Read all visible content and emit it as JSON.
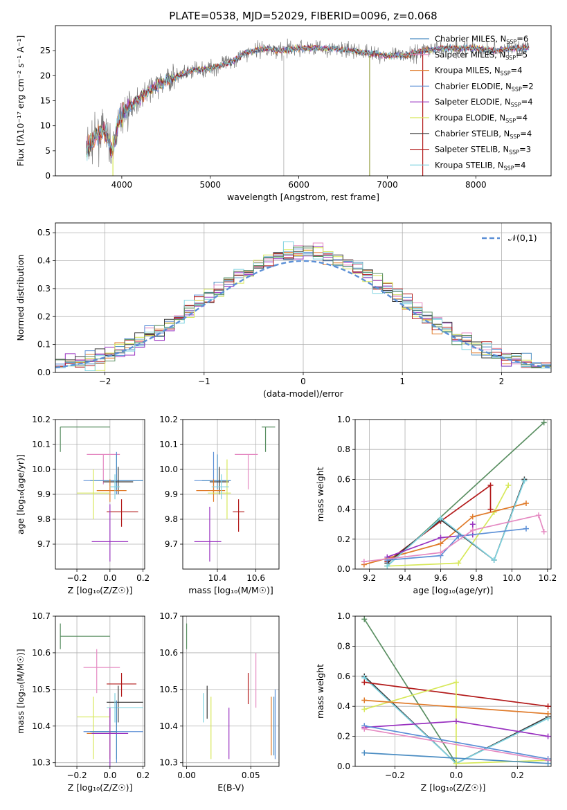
{
  "figure": {
    "title": "PLATE=0538, MJD=52029, FIBERID=0096, z=0.068"
  },
  "colors": {
    "chabrier_miles": "#4a8cc2",
    "salpeter_miles": "#e58ac2",
    "kroupa_miles": "#e07b2a",
    "chabrier_elodie": "#5b8fd6",
    "salpeter_elodie": "#9932c0",
    "kroupa_elodie": "#d7e85a",
    "chabrier_stelib": "#3a3a3a",
    "salpeter_stelib": "#b31b1b",
    "kroupa_stelib": "#7fd3e0",
    "normal_curve": "#5b8fd6",
    "green_line": "#5a8f62"
  },
  "chart_data": [
    {
      "id": "spectrum",
      "type": "line",
      "title": "PLATE=0538, MJD=52029, FIBERID=0096, z=0.068",
      "xlabel": "wavelength [Angstrom, rest frame]",
      "ylabel": "Flux [fλ10⁻¹⁷ erg cm⁻² s⁻¹ A⁻¹]",
      "xlim": [
        3250,
        8850
      ],
      "ylim": [
        0,
        30
      ],
      "xticks": [
        4000,
        5000,
        6000,
        7000,
        8000
      ],
      "yticks": [
        0,
        5,
        10,
        15,
        20,
        25
      ],
      "grid": false,
      "legend_position": "top-right",
      "legend": [
        {
          "label": "Chabrier MILES, N",
          "sub": "SSP",
          "suffix": "=6"
        },
        {
          "label": "Salpeter MILES, N",
          "sub": "SSP",
          "suffix": "=5"
        },
        {
          "label": "Kroupa MILES, N",
          "sub": "SSP",
          "suffix": "=4"
        },
        {
          "label": "Chabrier ELODIE, N",
          "sub": "SSP",
          "suffix": "=2"
        },
        {
          "label": "Salpeter ELODIE, N",
          "sub": "SSP",
          "suffix": "=4"
        },
        {
          "label": "Kroupa ELODIE, N",
          "sub": "SSP",
          "suffix": "=4"
        },
        {
          "label": "Chabrier STELIB, N",
          "sub": "SSP",
          "suffix": "=4"
        },
        {
          "label": "Salpeter STELIB, N",
          "sub": "SSP",
          "suffix": "=3"
        },
        {
          "label": "Kroupa STELIB, N",
          "sub": "SSP",
          "suffix": "=4"
        }
      ],
      "data_envelope": [
        [
          3600,
          5
        ],
        [
          3700,
          8
        ],
        [
          3800,
          9
        ],
        [
          3900,
          5
        ],
        [
          3950,
          10
        ],
        [
          4000,
          12
        ],
        [
          4100,
          14
        ],
        [
          4300,
          17
        ],
        [
          4500,
          19
        ],
        [
          4800,
          21
        ],
        [
          5000,
          21.5
        ],
        [
          5200,
          22.5
        ],
        [
          5400,
          24.5
        ],
        [
          5600,
          25.5
        ],
        [
          5800,
          25
        ],
        [
          6000,
          25.5
        ],
        [
          6300,
          25.5
        ],
        [
          6600,
          25
        ],
        [
          6800,
          24.5
        ],
        [
          7000,
          24
        ],
        [
          7200,
          24
        ],
        [
          7400,
          25
        ],
        [
          7600,
          25.5
        ],
        [
          7800,
          25.5
        ],
        [
          8000,
          25.5
        ],
        [
          8200,
          25
        ],
        [
          8400,
          25.5
        ],
        [
          8600,
          25.5
        ]
      ],
      "spikes": [
        {
          "x": 3900,
          "from": 0,
          "to": 8
        },
        {
          "x": 5830,
          "from": 0,
          "to": 24
        },
        {
          "x": 6800,
          "from": 0,
          "to": 24
        },
        {
          "x": 7400,
          "from": 0,
          "to": 25
        }
      ]
    },
    {
      "id": "residuals",
      "type": "histogram",
      "xlabel": "(data-model)/error",
      "ylabel": "Normed distribution",
      "xlim": [
        -2.5,
        2.5
      ],
      "ylim": [
        0,
        0.535
      ],
      "xticks": [
        -2,
        -1,
        0,
        1,
        2
      ],
      "yticks": [
        0.0,
        0.1,
        0.2,
        0.3,
        0.4,
        0.5
      ],
      "grid": true,
      "legend_position": "top-right",
      "legend_label": "𝒩(0,1)",
      "bin_width": 0.1
    },
    {
      "id": "age_vs_Z",
      "type": "errorbar",
      "xlabel": "Z [log₁₀(Z/Z☉)]",
      "ylabel": "age  [log₁₀(age/yr)]",
      "xlim": [
        -0.33,
        0.21
      ],
      "ylim": [
        9.6,
        10.2
      ],
      "xticks": [
        -0.2,
        0.0,
        0.2
      ],
      "yticks": [
        9.7,
        9.8,
        9.9,
        10.0,
        10.1,
        10.2
      ],
      "grid": true,
      "points": [
        {
          "c": "green_line",
          "x": -0.3,
          "xl": -0.3,
          "xh": 0.0,
          "y": 10.17,
          "yl": 10.07,
          "yh": 10.17
        },
        {
          "c": "salpeter_miles",
          "x": -0.04,
          "xl": -0.14,
          "xh": 0.06,
          "y": 10.06,
          "yl": 9.94,
          "yh": 10.06
        },
        {
          "c": "chabrier_elodie",
          "x": 0.04,
          "xl": -0.16,
          "xh": 0.2,
          "y": 9.955,
          "yl": 9.9,
          "yh": 10.07
        },
        {
          "c": "chabrier_miles",
          "x": 0.04,
          "xl": -0.12,
          "xh": 0.2,
          "y": 9.955,
          "yl": 9.92,
          "yh": 10.06
        },
        {
          "c": "chabrier_stelib",
          "x": 0.05,
          "xl": -0.04,
          "xh": 0.14,
          "y": 9.95,
          "yl": 9.9,
          "yh": 10.01
        },
        {
          "c": "kroupa_miles",
          "x": 0.0,
          "xl": -0.08,
          "xh": 0.1,
          "y": 9.915,
          "yl": 9.87,
          "yh": 9.96
        },
        {
          "c": "kroupa_elodie",
          "x": -0.1,
          "xl": -0.2,
          "xh": 0.0,
          "y": 9.905,
          "yl": 9.8,
          "yh": 10.0
        },
        {
          "c": "salpeter_stelib",
          "x": 0.07,
          "xl": -0.02,
          "xh": 0.17,
          "y": 9.83,
          "yl": 9.77,
          "yh": 9.88
        },
        {
          "c": "salpeter_elodie",
          "x": 0.0,
          "xl": -0.11,
          "xh": 0.11,
          "y": 9.71,
          "yl": 9.63,
          "yh": 9.86
        },
        {
          "c": "kroupa_stelib",
          "x": 0.03,
          "xl": 0.0,
          "xh": 0.06,
          "y": 9.93,
          "yl": 9.88,
          "yh": 9.98
        }
      ]
    },
    {
      "id": "age_vs_mass",
      "type": "errorbar",
      "xlabel": "mass [log₁₀(M/M☉)]",
      "ylabel": "",
      "xlim": [
        10.22,
        10.72
      ],
      "ylim": [
        9.6,
        10.2
      ],
      "xticks": [
        10.4,
        10.6
      ],
      "yticks": [
        9.7,
        9.8,
        9.9,
        10.0,
        10.1,
        10.2
      ],
      "grid": true,
      "points": [
        {
          "c": "green_line",
          "x": 10.65,
          "xl": 10.63,
          "xh": 10.7,
          "y": 10.17,
          "yl": 10.07,
          "yh": 10.17
        },
        {
          "c": "salpeter_miles",
          "x": 10.56,
          "xl": 10.49,
          "xh": 10.61,
          "y": 10.06,
          "yl": 9.92,
          "yh": 10.06
        },
        {
          "c": "chabrier_elodie",
          "x": 10.38,
          "xl": 10.28,
          "xh": 10.47,
          "y": 9.955,
          "yl": 9.9,
          "yh": 10.07
        },
        {
          "c": "chabrier_miles",
          "x": 10.4,
          "xl": 10.32,
          "xh": 10.47,
          "y": 9.955,
          "yl": 9.92,
          "yh": 10.06
        },
        {
          "c": "chabrier_stelib",
          "x": 10.41,
          "xl": 10.36,
          "xh": 10.46,
          "y": 9.95,
          "yl": 9.9,
          "yh": 10.01
        },
        {
          "c": "kroupa_miles",
          "x": 10.38,
          "xl": 10.29,
          "xh": 10.44,
          "y": 9.915,
          "yl": 9.87,
          "yh": 9.96
        },
        {
          "c": "kroupa_elodie",
          "x": 10.45,
          "xl": 10.35,
          "xh": 10.47,
          "y": 9.905,
          "yl": 9.8,
          "yh": 10.04
        },
        {
          "c": "salpeter_stelib",
          "x": 10.51,
          "xl": 10.48,
          "xh": 10.54,
          "y": 9.83,
          "yl": 9.75,
          "yh": 9.88
        },
        {
          "c": "salpeter_elodie",
          "x": 10.36,
          "xl": 10.28,
          "xh": 10.42,
          "y": 9.71,
          "yl": 9.63,
          "yh": 9.85
        },
        {
          "c": "kroupa_stelib",
          "x": 10.42,
          "xl": 10.37,
          "xh": 10.46,
          "y": 9.93,
          "yl": 9.88,
          "yh": 9.98
        }
      ]
    },
    {
      "id": "massweight_vs_age",
      "type": "line",
      "xlabel": "age  [log₁₀(age/yr)]",
      "ylabel": "mass weight",
      "xlim": [
        9.12,
        10.22
      ],
      "ylim": [
        0,
        1.0
      ],
      "xticks": [
        9.2,
        9.4,
        9.6,
        9.8,
        10.0,
        10.2
      ],
      "yticks": [
        0.0,
        0.2,
        0.4,
        0.6,
        0.8,
        1.0
      ],
      "grid": true,
      "series": [
        {
          "c": "green_line",
          "x": [
            9.3,
            10.18
          ],
          "y": [
            0.02,
            0.98
          ]
        },
        {
          "c": "salpeter_stelib",
          "x": [
            9.3,
            9.6,
            9.88,
            9.88
          ],
          "y": [
            0.05,
            0.32,
            0.56,
            0.4
          ]
        },
        {
          "c": "kroupa_elodie",
          "x": [
            9.3,
            9.7,
            9.9,
            9.98
          ],
          "y": [
            0.02,
            0.04,
            0.38,
            0.56
          ]
        },
        {
          "c": "kroupa_miles",
          "x": [
            9.17,
            9.6,
            9.78,
            10.08
          ],
          "y": [
            0.03,
            0.17,
            0.35,
            0.44
          ]
        },
        {
          "c": "chabrier_stelib",
          "x": [
            9.3,
            9.6,
            9.9,
            10.07
          ],
          "y": [
            0.04,
            0.33,
            0.06,
            0.6
          ]
        },
        {
          "c": "kroupa_stelib",
          "x": [
            9.3,
            9.6,
            9.9,
            10.07
          ],
          "y": [
            0.02,
            0.34,
            0.06,
            0.59
          ]
        },
        {
          "c": "salpeter_elodie",
          "x": [
            9.3,
            9.6,
            9.78,
            9.78
          ],
          "y": [
            0.08,
            0.21,
            0.23,
            0.3
          ]
        },
        {
          "c": "chabrier_elodie",
          "x": [
            9.3,
            9.6,
            9.7,
            10.08
          ],
          "y": [
            0.06,
            0.09,
            0.22,
            0.27
          ]
        },
        {
          "c": "salpeter_miles",
          "x": [
            9.17,
            9.6,
            9.78,
            10.15,
            10.18
          ],
          "y": [
            0.05,
            0.11,
            0.26,
            0.36,
            0.25
          ]
        }
      ]
    },
    {
      "id": "mass_vs_Z",
      "type": "errorbar",
      "xlabel": "Z [log₁₀(Z/Z☉)]",
      "ylabel": "mass [log₁₀(M/M☉)]",
      "xlim": [
        -0.33,
        0.21
      ],
      "ylim": [
        10.29,
        10.7
      ],
      "xticks": [
        -0.2,
        0.0,
        0.2
      ],
      "yticks": [
        10.3,
        10.4,
        10.5,
        10.6,
        10.7
      ],
      "grid": true,
      "points": [
        {
          "c": "green_line",
          "x": -0.3,
          "xl": -0.3,
          "xh": 0.0,
          "y": 10.645,
          "yl": 10.61,
          "yh": 10.68
        },
        {
          "c": "salpeter_miles",
          "x": -0.08,
          "xl": -0.16,
          "xh": 0.06,
          "y": 10.56,
          "yl": 10.49,
          "yh": 10.61
        },
        {
          "c": "salpeter_stelib",
          "x": 0.07,
          "xl": -0.02,
          "xh": 0.16,
          "y": 10.515,
          "yl": 10.48,
          "yh": 10.545
        },
        {
          "c": "chabrier_stelib",
          "x": 0.05,
          "xl": -0.02,
          "xh": 0.2,
          "y": 10.465,
          "yl": 10.41,
          "yh": 10.51
        },
        {
          "c": "kroupa_stelib",
          "x": 0.03,
          "xl": -0.02,
          "xh": 0.2,
          "y": 10.45,
          "yl": 10.41,
          "yh": 10.49
        },
        {
          "c": "kroupa_elodie",
          "x": -0.1,
          "xl": -0.2,
          "xh": 0.0,
          "y": 10.425,
          "yl": 10.31,
          "yh": 10.48
        },
        {
          "c": "chabrier_elodie",
          "x": 0.04,
          "xl": -0.16,
          "xh": 0.2,
          "y": 10.385,
          "yl": 10.3,
          "yh": 10.46
        },
        {
          "c": "chabrier_miles",
          "x": 0.04,
          "xl": -0.12,
          "xh": 0.04,
          "y": 10.385,
          "yl": 10.31,
          "yh": 10.47
        },
        {
          "c": "kroupa_miles",
          "x": 0.0,
          "xl": -0.14,
          "xh": 0.04,
          "y": 10.38,
          "yl": 10.31,
          "yh": 10.45
        },
        {
          "c": "salpeter_elodie",
          "x": 0.0,
          "xl": -0.11,
          "xh": 0.11,
          "y": 10.38,
          "yl": 10.29,
          "yh": 10.45
        }
      ]
    },
    {
      "id": "mass_vs_EBV",
      "type": "errorbar",
      "xlabel": "E(B-V)",
      "ylabel": "",
      "xlim": [
        -0.003,
        0.072
      ],
      "ylim": [
        10.29,
        10.7
      ],
      "xticks": [
        0.0,
        0.05
      ],
      "xticklabels": [
        "0.00",
        "0.05"
      ],
      "yticks": [
        10.3,
        10.4,
        10.5,
        10.6,
        10.7
      ],
      "grid": true,
      "points": [
        {
          "c": "green_line",
          "x": 0.0,
          "y": 10.645,
          "yl": 10.61,
          "yh": 10.68
        },
        {
          "c": "salpeter_miles",
          "x": 0.054,
          "y": 10.53,
          "yl": 10.45,
          "yh": 10.6
        },
        {
          "c": "salpeter_stelib",
          "x": 0.048,
          "y": 10.5,
          "yl": 10.46,
          "yh": 10.545
        },
        {
          "c": "chabrier_stelib",
          "x": 0.016,
          "y": 10.47,
          "yl": 10.42,
          "yh": 10.51
        },
        {
          "c": "kroupa_stelib",
          "x": 0.013,
          "y": 10.45,
          "yl": 10.41,
          "yh": 10.49
        },
        {
          "c": "kroupa_elodie",
          "x": 0.019,
          "y": 10.42,
          "yl": 10.31,
          "yh": 10.48
        },
        {
          "c": "chabrier_elodie",
          "x": 0.069,
          "y": 10.41,
          "yl": 10.31,
          "yh": 10.5
        },
        {
          "c": "chabrier_miles",
          "x": 0.068,
          "y": 10.4,
          "yl": 10.32,
          "yh": 10.48
        },
        {
          "c": "kroupa_miles",
          "x": 0.066,
          "y": 10.38,
          "yl": 10.32,
          "yh": 10.48
        },
        {
          "c": "salpeter_elodie",
          "x": 0.033,
          "y": 10.38,
          "yl": 10.31,
          "yh": 10.45
        }
      ]
    },
    {
      "id": "massweight_vs_Z",
      "type": "line",
      "xlabel": "Z [log₁₀(Z/Z☉)]",
      "ylabel": "mass weight",
      "xlim": [
        -0.33,
        0.31
      ],
      "ylim": [
        0,
        1.0
      ],
      "xticks": [
        -0.2,
        0.0,
        0.2
      ],
      "yticks": [
        0.0,
        0.2,
        0.4,
        0.6,
        0.8,
        1.0
      ],
      "grid": true,
      "series": [
        {
          "c": "green_line",
          "x": [
            -0.3,
            0.0
          ],
          "y": [
            0.98,
            0.02
          ]
        },
        {
          "c": "chabrier_stelib",
          "x": [
            -0.3,
            0.0,
            0.3
          ],
          "y": [
            0.6,
            0.02,
            0.33
          ]
        },
        {
          "c": "kroupa_stelib",
          "x": [
            -0.3,
            0.0,
            0.3
          ],
          "y": [
            0.59,
            0.02,
            0.32
          ]
        },
        {
          "c": "salpeter_stelib",
          "x": [
            -0.3,
            0.3
          ],
          "y": [
            0.56,
            0.4
          ]
        },
        {
          "c": "kroupa_elodie",
          "x": [
            -0.3,
            0.0,
            0.0,
            0.3
          ],
          "y": [
            0.38,
            0.56,
            0.02,
            0.04
          ]
        },
        {
          "c": "kroupa_miles",
          "x": [
            -0.3,
            0.3
          ],
          "y": [
            0.44,
            0.35
          ]
        },
        {
          "c": "salpeter_elodie",
          "x": [
            -0.3,
            0.0,
            0.3
          ],
          "y": [
            0.26,
            0.3,
            0.2
          ]
        },
        {
          "c": "chabrier_elodie",
          "x": [
            -0.3,
            0.3
          ],
          "y": [
            0.27,
            0.05
          ]
        },
        {
          "c": "salpeter_miles",
          "x": [
            -0.3,
            0.3
          ],
          "y": [
            0.25,
            0.04
          ]
        },
        {
          "c": "chabrier_miles",
          "x": [
            -0.3,
            0.3
          ],
          "y": [
            0.09,
            0.02
          ]
        }
      ]
    }
  ]
}
